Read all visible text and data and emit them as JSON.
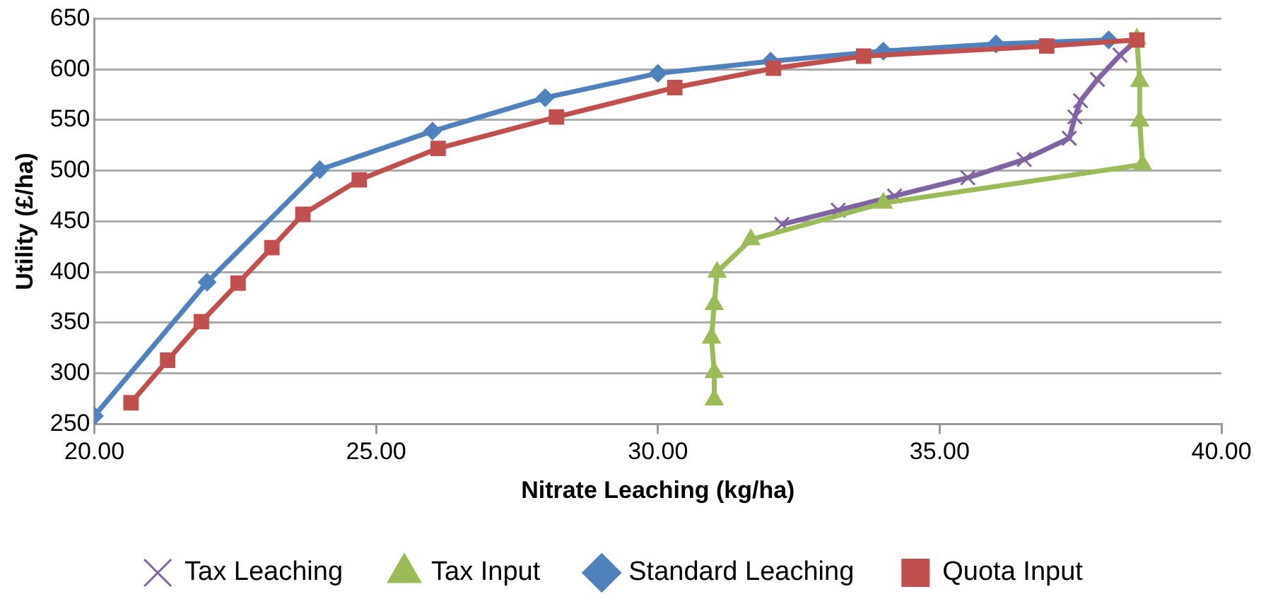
{
  "chart_data": {
    "type": "line",
    "xlabel": "Nitrate Leaching (kg/ha)",
    "ylabel": "Utility (£/ha)",
    "xlim": [
      20,
      40
    ],
    "xticks": [
      {
        "value": 20,
        "label": "20.00"
      },
      {
        "value": 25,
        "label": "25.00"
      },
      {
        "value": 30,
        "label": "30.00"
      },
      {
        "value": 35,
        "label": "35.00"
      },
      {
        "value": 40,
        "label": "40.00"
      }
    ],
    "ylim": [
      250,
      650
    ],
    "yticks": [
      250,
      300,
      350,
      400,
      450,
      500,
      550,
      600,
      650
    ],
    "grid": "y",
    "legend": "bottom",
    "series": [
      {
        "name": "Tax Leaching",
        "color": "#8064a2",
        "marker": "cross",
        "x": [
          32.2,
          33.2,
          34.2,
          35.5,
          36.5,
          37.3,
          37.4,
          37.5,
          37.8,
          38.2,
          38.5
        ],
        "values": [
          447,
          461,
          475,
          493,
          511,
          532,
          553,
          569,
          590,
          614,
          629
        ]
      },
      {
        "name": "Tax Input",
        "color": "#9bbb59",
        "marker": "triangle",
        "x": [
          31.0,
          31.0,
          30.95,
          31.0,
          31.05,
          31.65,
          34.0,
          38.6,
          38.55,
          38.55,
          38.5
        ],
        "values": [
          274,
          301,
          335,
          368,
          400,
          432,
          468,
          506,
          549,
          588,
          630
        ]
      },
      {
        "name": "Standard Leaching",
        "color": "#4f81bd",
        "marker": "diamond",
        "x": [
          20,
          22,
          24,
          26,
          28,
          30,
          32,
          34,
          36,
          38
        ],
        "values": [
          258,
          390,
          501,
          539,
          572,
          596,
          608,
          618,
          625,
          629
        ]
      },
      {
        "name": "Quota Input",
        "color": "#c0504d",
        "marker": "square",
        "x": [
          20.65,
          21.3,
          21.9,
          22.55,
          23.15,
          23.7,
          24.7,
          26.1,
          28.2,
          30.3,
          32.05,
          33.65,
          36.9,
          38.5
        ],
        "values": [
          271,
          313,
          351,
          389,
          424,
          457,
          491,
          522,
          553,
          582,
          601,
          613,
          623,
          629
        ]
      }
    ]
  }
}
